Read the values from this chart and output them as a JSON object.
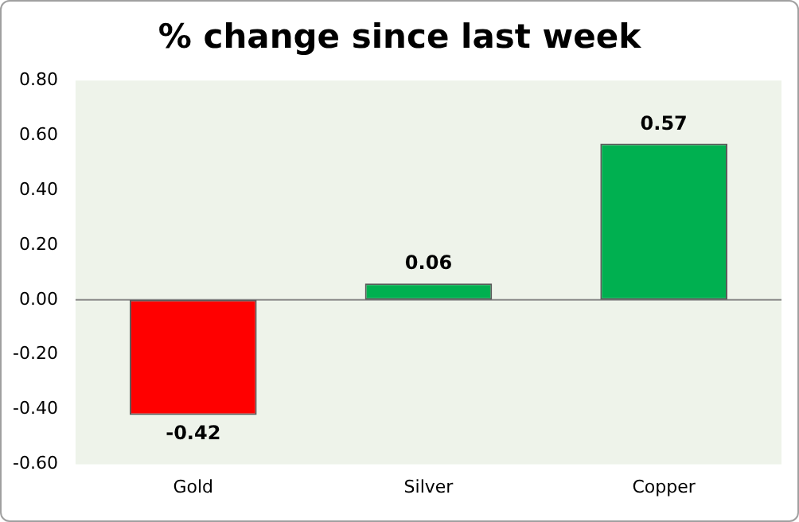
{
  "chart_data": {
    "type": "bar",
    "title": "% change since last week",
    "categories": [
      "Gold",
      "Silver",
      "Copper"
    ],
    "values": [
      -0.42,
      0.06,
      0.57
    ],
    "colors": [
      "#ff0000",
      "#00b050",
      "#00b050"
    ],
    "ylim": [
      -0.6,
      0.8
    ],
    "yticks": [
      {
        "value": -0.6,
        "label": "-0.60"
      },
      {
        "value": -0.4,
        "label": "-0.40"
      },
      {
        "value": -0.2,
        "label": "-0.20"
      },
      {
        "value": 0,
        "label": "0.00"
      },
      {
        "value": 0.2,
        "label": "0.20"
      },
      {
        "value": 0.4,
        "label": "0.40"
      },
      {
        "value": 0.6,
        "label": "0.60"
      },
      {
        "value": 0.8,
        "label": "0.80"
      }
    ],
    "value_labels": [
      "-0.42",
      "0.06",
      "0.57"
    ],
    "ref_lines": [
      {
        "axis": "y",
        "value": 0,
        "color": "#8a8a8a"
      }
    ],
    "grid": false,
    "legend": false
  }
}
